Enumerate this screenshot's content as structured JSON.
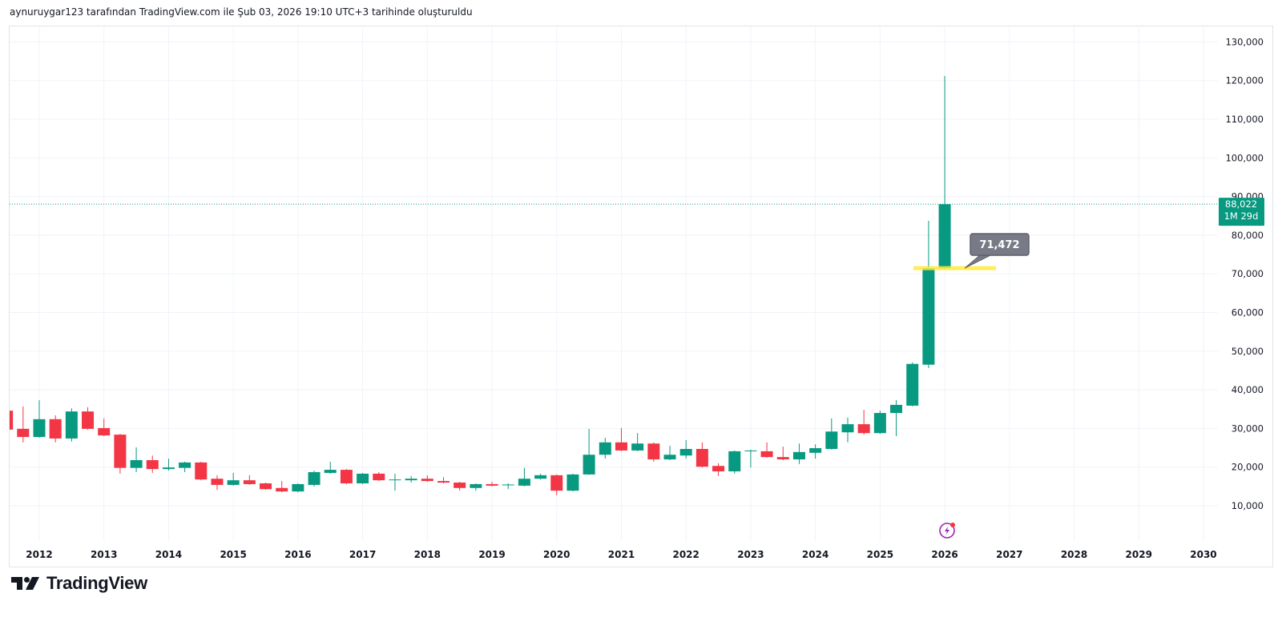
{
  "header": {
    "text": "aynuruygar123 tarafından TradingView.com ile Şub 03, 2026 19:10 UTC+3 tarihinde oluşturuldu"
  },
  "logo": {
    "text": "TradingView"
  },
  "colors": {
    "up": "#089981",
    "down": "#f23645",
    "grid": "#f0f3fa",
    "highlight": "#ffeb3b",
    "callout": "#787b86",
    "event": "#9c27b0",
    "event_dot": "#f23645"
  },
  "price_label": {
    "value": "88,022",
    "countdown": "1M 29d"
  },
  "annotation": {
    "label": "71,472",
    "value": 71472
  },
  "event_icon": {
    "name": "lightning-event-icon"
  },
  "chart_data": {
    "type": "candlestick",
    "interval": "3M",
    "title": "",
    "y_ticks": [
      "10,000",
      "20,000",
      "30,000",
      "40,000",
      "50,000",
      "60,000",
      "70,000",
      "80,000",
      "90,000",
      "100,000",
      "110,000",
      "120,000",
      "130,000"
    ],
    "y_tick_values": [
      10000,
      20000,
      30000,
      40000,
      50000,
      60000,
      70000,
      80000,
      90000,
      100000,
      110000,
      120000,
      130000
    ],
    "x_ticks": [
      "2012",
      "2013",
      "2014",
      "2015",
      "2016",
      "2017",
      "2018",
      "2019",
      "2020",
      "2021",
      "2022",
      "2023",
      "2024",
      "2025",
      "2026",
      "2027",
      "2028",
      "2029",
      "2030"
    ],
    "ylim": [
      0,
      135000
    ],
    "last_price": 88022,
    "candles_fields": [
      "period",
      "open",
      "high",
      "low",
      "close"
    ],
    "candles": [
      [
        "2011Q3",
        34600,
        34800,
        29500,
        29700
      ],
      [
        "2011Q4",
        29900,
        35700,
        26400,
        27800
      ],
      [
        "2012Q1",
        27800,
        37300,
        27600,
        32400
      ],
      [
        "2012Q2",
        32400,
        33400,
        26400,
        27400
      ],
      [
        "2012Q3",
        27400,
        35200,
        26600,
        34400
      ],
      [
        "2012Q4",
        34400,
        35500,
        29700,
        29900
      ],
      [
        "2013Q1",
        30100,
        32600,
        28000,
        28200
      ],
      [
        "2013Q2",
        28400,
        28600,
        18300,
        19800
      ],
      [
        "2013Q3",
        19800,
        25100,
        18700,
        21800
      ],
      [
        "2013Q4",
        21800,
        23000,
        18500,
        19500
      ],
      [
        "2014Q1",
        19500,
        22200,
        19100,
        19900
      ],
      [
        "2014Q2",
        19800,
        21400,
        18700,
        21200
      ],
      [
        "2014Q3",
        21200,
        21400,
        16600,
        16800
      ],
      [
        "2014Q4",
        17000,
        17900,
        14100,
        15400
      ],
      [
        "2015Q1",
        15400,
        18500,
        15200,
        16600
      ],
      [
        "2015Q2",
        16600,
        17900,
        15400,
        15600
      ],
      [
        "2015Q3",
        15800,
        16000,
        14100,
        14300
      ],
      [
        "2015Q4",
        14600,
        16400,
        13500,
        13700
      ],
      [
        "2016Q1",
        13700,
        15800,
        13500,
        15600
      ],
      [
        "2016Q2",
        15400,
        19100,
        15000,
        18700
      ],
      [
        "2016Q3",
        18500,
        21400,
        18300,
        19300
      ],
      [
        "2016Q4",
        19300,
        19500,
        15600,
        15800
      ],
      [
        "2017Q1",
        15800,
        18500,
        15600,
        18300
      ],
      [
        "2017Q2",
        18300,
        18700,
        16400,
        16600
      ],
      [
        "2017Q3",
        16600,
        18300,
        13900,
        16800
      ],
      [
        "2017Q4",
        16600,
        17700,
        16000,
        17000
      ],
      [
        "2018Q1",
        17000,
        17900,
        16200,
        16400
      ],
      [
        "2018Q2",
        16400,
        17400,
        15800,
        16000
      ],
      [
        "2018Q3",
        16000,
        16200,
        13900,
        14600
      ],
      [
        "2018Q4",
        14600,
        15800,
        13900,
        15600
      ],
      [
        "2019Q1",
        15600,
        16200,
        15000,
        15200
      ],
      [
        "2019Q2",
        15300,
        15800,
        14300,
        15500
      ],
      [
        "2019Q3",
        15200,
        19800,
        15000,
        17000
      ],
      [
        "2019Q4",
        17000,
        18300,
        16800,
        17900
      ],
      [
        "2020Q1",
        17900,
        18100,
        12700,
        13900
      ],
      [
        "2020Q2",
        13900,
        18300,
        13700,
        18100
      ],
      [
        "2020Q3",
        18100,
        29900,
        18000,
        23200
      ],
      [
        "2020Q4",
        23200,
        27600,
        22200,
        26400
      ],
      [
        "2021Q1",
        26400,
        30100,
        24100,
        24300
      ],
      [
        "2021Q2",
        24300,
        28800,
        24100,
        26100
      ],
      [
        "2021Q3",
        26100,
        26400,
        21400,
        22000
      ],
      [
        "2021Q4",
        22000,
        25500,
        21800,
        23200
      ],
      [
        "2022Q1",
        23000,
        27000,
        22200,
        24700
      ],
      [
        "2022Q2",
        24700,
        26400,
        19900,
        20100
      ],
      [
        "2022Q3",
        20300,
        21000,
        17700,
        18900
      ],
      [
        "2022Q4",
        18900,
        24300,
        18300,
        24100
      ],
      [
        "2023Q1",
        24100,
        24500,
        19900,
        24300
      ],
      [
        "2023Q2",
        24100,
        26400,
        22400,
        22600
      ],
      [
        "2023Q3",
        22600,
        25300,
        21800,
        22000
      ],
      [
        "2023Q4",
        22000,
        26100,
        20800,
        23900
      ],
      [
        "2024Q1",
        23700,
        25900,
        22200,
        24900
      ],
      [
        "2024Q2",
        24700,
        32600,
        24500,
        29200
      ],
      [
        "2024Q3",
        29000,
        32800,
        26400,
        31100
      ],
      [
        "2024Q4",
        31100,
        34800,
        28400,
        28800
      ],
      [
        "2025Q1",
        28800,
        34600,
        28600,
        34000
      ],
      [
        "2025Q2",
        34000,
        37300,
        28000,
        36100
      ],
      [
        "2025Q3",
        35900,
        47100,
        35700,
        46700
      ],
      [
        "2025Q4",
        46500,
        83700,
        45600,
        71472
      ],
      [
        "2026Q1",
        71472,
        121200,
        71200,
        88022
      ]
    ]
  }
}
